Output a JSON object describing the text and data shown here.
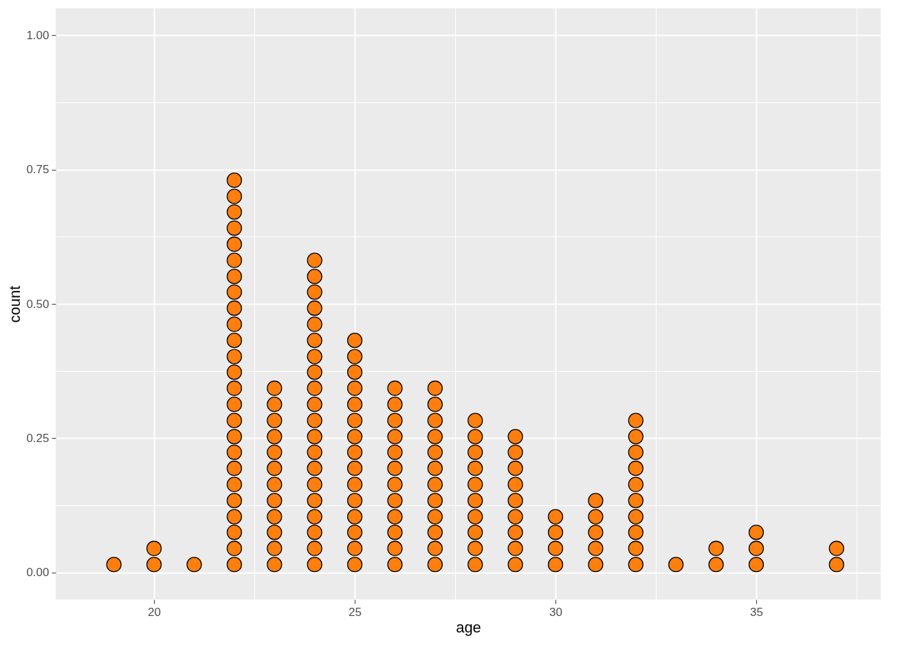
{
  "chart_data": {
    "type": "scatter",
    "xlabel": "age",
    "ylabel": "count",
    "xlim": [
      17.55,
      38.1
    ],
    "ylim": [
      -0.05,
      1.05
    ],
    "xticks": [
      20,
      {
        "value": 22.5,
        "label": null
      },
      25,
      {
        "value": 27.5,
        "label": null
      },
      30,
      {
        "value": 32.5,
        "label": null
      },
      35,
      {
        "value": 37.5,
        "label": null
      }
    ],
    "yticks": [
      {
        "value": 0,
        "label": "0.00"
      },
      {
        "value": 0.125,
        "label": null
      },
      {
        "value": 0.25,
        "label": "0.25"
      },
      {
        "value": 0.375,
        "label": null
      },
      {
        "value": 0.5,
        "label": "0.50"
      },
      {
        "value": 0.625,
        "label": null
      },
      {
        "value": 0.75,
        "label": "0.75"
      },
      {
        "value": 0.875,
        "label": null
      },
      {
        "value": 1,
        "label": "1.00"
      }
    ],
    "grid": true,
    "marker": "circle",
    "series": [
      {
        "color": "#ff7f0e",
        "x": [
          19,
          20,
          20,
          21,
          22,
          22,
          22,
          22,
          22,
          22,
          22,
          22,
          22,
          22,
          22,
          22,
          22,
          22,
          22,
          22,
          22,
          22,
          22,
          22,
          22,
          22,
          22,
          22,
          22,
          23,
          23,
          23,
          23,
          23,
          23,
          23,
          23,
          23,
          23,
          23,
          23,
          24,
          24,
          24,
          24,
          24,
          24,
          24,
          24,
          24,
          24,
          24,
          24,
          24,
          24,
          24,
          24,
          24,
          24,
          24,
          24,
          25,
          25,
          25,
          25,
          25,
          25,
          25,
          25,
          25,
          25,
          25,
          25,
          25,
          25,
          25,
          26,
          26,
          26,
          26,
          26,
          26,
          26,
          26,
          26,
          26,
          26,
          26,
          27,
          27,
          27,
          27,
          27,
          27,
          27,
          27,
          27,
          27,
          27,
          27,
          28,
          28,
          28,
          28,
          28,
          28,
          28,
          28,
          28,
          28,
          29,
          29,
          29,
          29,
          29,
          29,
          29,
          29,
          29,
          30,
          30,
          30,
          30,
          31,
          31,
          31,
          31,
          31,
          32,
          32,
          32,
          32,
          32,
          32,
          32,
          32,
          32,
          32,
          33,
          34,
          34,
          35,
          35,
          35,
          37,
          37
        ],
        "values": [
          0.015,
          0.015,
          0.045,
          0.015,
          0.015,
          0.045,
          0.075,
          0.104,
          0.134,
          0.164,
          0.194,
          0.224,
          0.253,
          0.283,
          0.313,
          0.343,
          0.373,
          0.402,
          0.432,
          0.462,
          0.492,
          0.522,
          0.551,
          0.581,
          0.611,
          0.641,
          0.671,
          0.7,
          0.73,
          0.015,
          0.045,
          0.075,
          0.104,
          0.134,
          0.164,
          0.194,
          0.224,
          0.253,
          0.283,
          0.313,
          0.343,
          0.015,
          0.045,
          0.075,
          0.104,
          0.134,
          0.164,
          0.194,
          0.224,
          0.253,
          0.283,
          0.313,
          0.343,
          0.373,
          0.402,
          0.432,
          0.462,
          0.492,
          0.522,
          0.551,
          0.581,
          0.015,
          0.045,
          0.075,
          0.104,
          0.134,
          0.164,
          0.194,
          0.224,
          0.253,
          0.283,
          0.313,
          0.343,
          0.373,
          0.402,
          0.432,
          0.015,
          0.045,
          0.075,
          0.104,
          0.134,
          0.164,
          0.194,
          0.224,
          0.253,
          0.283,
          0.313,
          0.343,
          0.015,
          0.045,
          0.075,
          0.104,
          0.134,
          0.164,
          0.194,
          0.224,
          0.253,
          0.283,
          0.313,
          0.343,
          0.015,
          0.045,
          0.075,
          0.104,
          0.134,
          0.164,
          0.194,
          0.224,
          0.253,
          0.283,
          0.015,
          0.045,
          0.075,
          0.104,
          0.134,
          0.164,
          0.194,
          0.224,
          0.253,
          0.015,
          0.045,
          0.075,
          0.104,
          0.015,
          0.045,
          0.075,
          0.104,
          0.134,
          0.015,
          0.045,
          0.075,
          0.104,
          0.134,
          0.164,
          0.194,
          0.224,
          0.253,
          0.283,
          0.015,
          0.015,
          0.045,
          0.015,
          0.045,
          0.075,
          0.015,
          0.045
        ]
      }
    ]
  }
}
